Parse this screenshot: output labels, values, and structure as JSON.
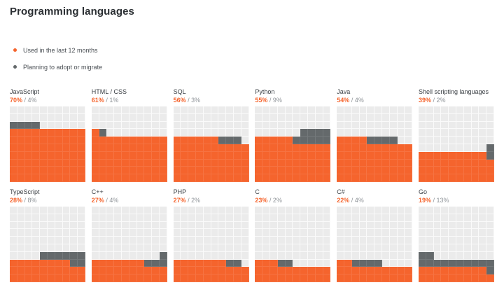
{
  "page": {
    "title": "Programming languages"
  },
  "legend": {
    "items": [
      {
        "label": "Used in the last 12 months",
        "color": "#f5642d"
      },
      {
        "label": "Planning to adopt or migrate",
        "color": "#64696b"
      }
    ]
  },
  "colors": {
    "used": "#f5642d",
    "plan": "#64696b",
    "empty_cell": "#ebebeb",
    "title_text": "#2b2f33",
    "label_text": "#3a3f44",
    "muted_text": "#8d9297"
  },
  "chart_data": {
    "type": "heatmap",
    "subtype": "waffle-grid-10x10",
    "title": "Programming languages",
    "value_unit": "percent",
    "value_format": "<used>% / <plan>%",
    "layout": {
      "columns": 6,
      "rows": 2,
      "cell_grid": "10x10",
      "legend_position": "top-left",
      "grid": true
    },
    "series_labels": [
      "Used in the last 12 months",
      "Planning to adopt or migrate"
    ],
    "languages": [
      {
        "name": "JavaScript",
        "used": 70,
        "plan": 4
      },
      {
        "name": "HTML / CSS",
        "used": 61,
        "plan": 1
      },
      {
        "name": "SQL",
        "used": 56,
        "plan": 3
      },
      {
        "name": "Python",
        "used": 55,
        "plan": 9
      },
      {
        "name": "Java",
        "used": 54,
        "plan": 4
      },
      {
        "name": "Shell scripting languages",
        "used": 39,
        "plan": 2
      },
      {
        "name": "TypeScript",
        "used": 28,
        "plan": 8
      },
      {
        "name": "C++",
        "used": 27,
        "plan": 4
      },
      {
        "name": "PHP",
        "used": 27,
        "plan": 2
      },
      {
        "name": "C",
        "used": 23,
        "plan": 2
      },
      {
        "name": "C#",
        "used": 22,
        "plan": 4
      },
      {
        "name": "Go",
        "used": 19,
        "plan": 13
      }
    ]
  }
}
